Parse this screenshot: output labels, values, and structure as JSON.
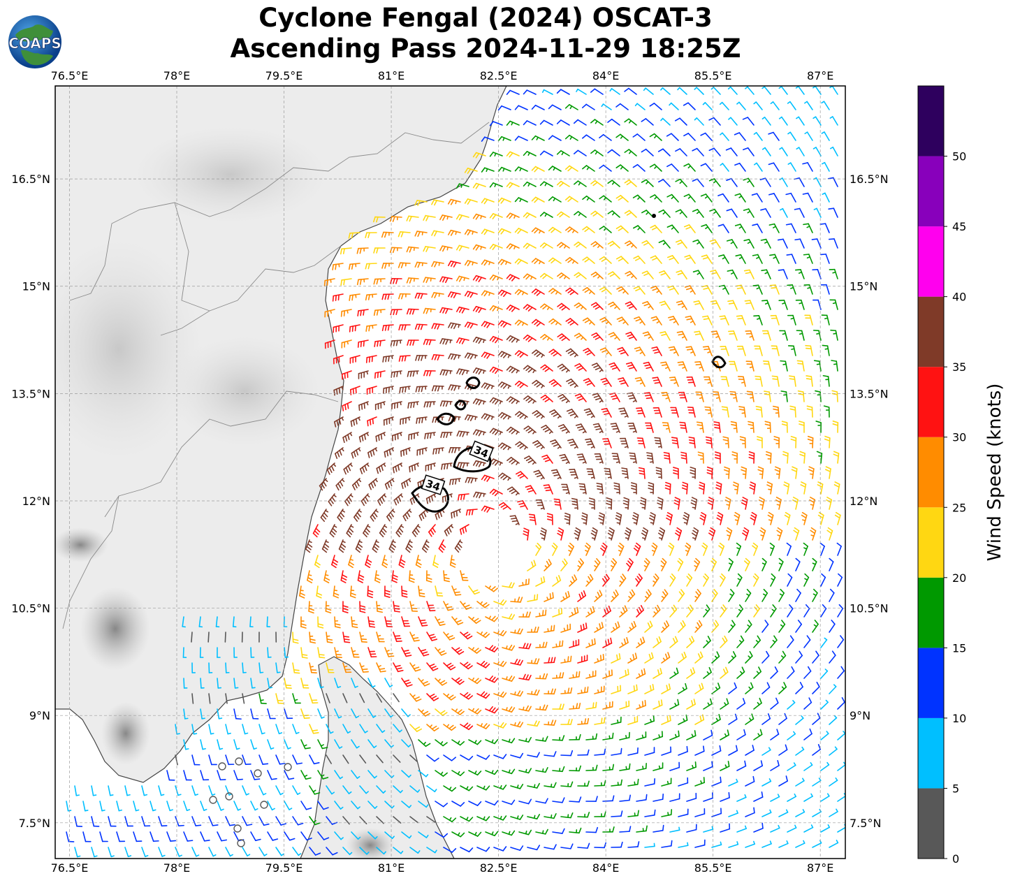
{
  "title": {
    "line1": "Cyclone Fengal (2024) OSCAT-3",
    "line2": "Ascending Pass 2024-11-29 18:25Z"
  },
  "logo": {
    "text": "COAPS",
    "icon": "globe-logo-icon"
  },
  "map": {
    "lon_range": [
      76.3,
      87.35
    ],
    "lat_range": [
      7.0,
      17.8
    ],
    "lon_ticks": [
      "76.5°E",
      "78°E",
      "79.5°E",
      "81°E",
      "82.5°E",
      "84°E",
      "85.5°E",
      "87°E"
    ],
    "lon_values": [
      76.5,
      78,
      79.5,
      81,
      82.5,
      84,
      85.5,
      87
    ],
    "lat_ticks": [
      "16.5°N",
      "15°N",
      "13.5°N",
      "12°N",
      "10.5°N",
      "9°N",
      "7.5°N"
    ],
    "lat_values": [
      16.5,
      15,
      13.5,
      12,
      10.5,
      9,
      7.5
    ],
    "gridlines": true,
    "cyclone_center": {
      "lon": 82.45,
      "lat": 11.35
    },
    "contour_value": "34",
    "contour_label_color": "#000000"
  },
  "colorbar": {
    "label": "Wind Speed (knots)",
    "ticks": [
      "0",
      "5",
      "10",
      "15",
      "20",
      "25",
      "30",
      "35",
      "40",
      "45",
      "50"
    ],
    "bins": [
      {
        "min": 0,
        "max": 5,
        "color": "#585858"
      },
      {
        "min": 5,
        "max": 10,
        "color": "#00bfff"
      },
      {
        "min": 10,
        "max": 15,
        "color": "#0033ff"
      },
      {
        "min": 15,
        "max": 20,
        "color": "#009900"
      },
      {
        "min": 20,
        "max": 25,
        "color": "#ffd712"
      },
      {
        "min": 25,
        "max": 30,
        "color": "#ff8c00"
      },
      {
        "min": 30,
        "max": 35,
        "color": "#ff1212"
      },
      {
        "min": 35,
        "max": 40,
        "color": "#7f3a28"
      },
      {
        "min": 40,
        "max": 45,
        "color": "#ff00ee"
      },
      {
        "min": 45,
        "max": 50,
        "color": "#8800bb"
      },
      {
        "min": 50,
        "max": 55,
        "color": "#2e005e"
      }
    ]
  }
}
